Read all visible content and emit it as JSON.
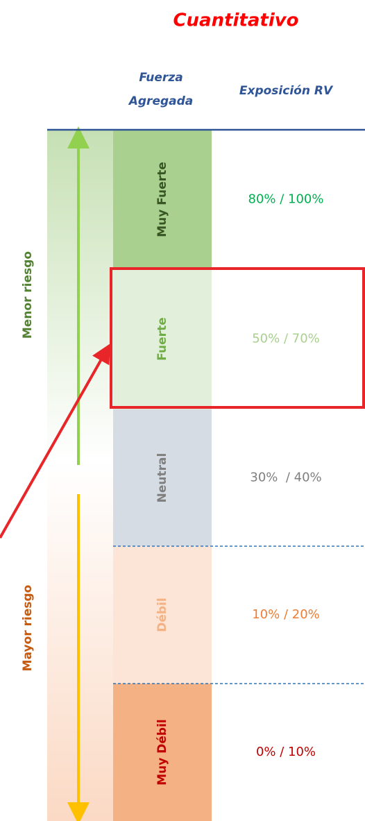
{
  "title": "Cuantitativo",
  "headers": {
    "strength": "Fuerza Agregada",
    "exposure": "Exposición RV"
  },
  "side_labels": {
    "top": "Menor riesgo",
    "bottom": "Mayor riesgo"
  },
  "rows": [
    {
      "label": "Muy Fuerte",
      "value": "80% / 100%"
    },
    {
      "label": "Fuerte",
      "value": "50% / 70%"
    },
    {
      "label": "Neutral",
      "value": "30%  / 40%"
    },
    {
      "label": "Débil",
      "value": "10% / 20%"
    },
    {
      "label": "Muy Débil",
      "value": "0% / 10%"
    }
  ]
}
